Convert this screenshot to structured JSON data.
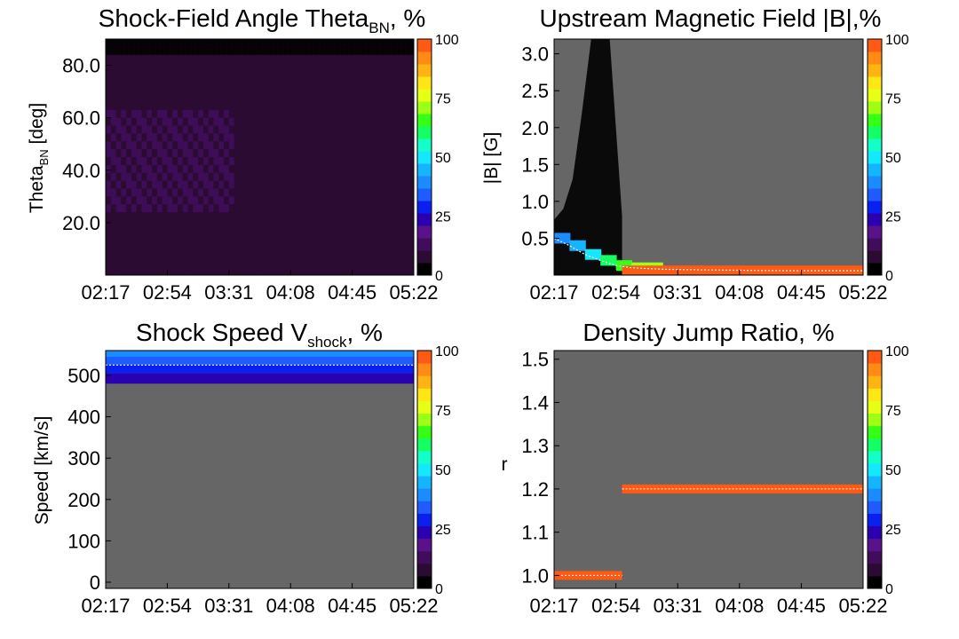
{
  "colorbar": {
    "ticks": [
      "0",
      "25",
      "50",
      "75",
      "100"
    ],
    "colors": [
      "#000000",
      "#2b0a33",
      "#3f0d5c",
      "#5a128a",
      "#2a00b0",
      "#0a20f0",
      "#1e5cff",
      "#1a8cff",
      "#14b4ff",
      "#14e8ff",
      "#14ffc8",
      "#14ff64",
      "#34ff14",
      "#9cff14",
      "#e6ff14",
      "#ffe614",
      "#ffb414",
      "#ff8a14",
      "#ff5a14"
    ]
  },
  "chart_data": [
    {
      "type": "heatmap",
      "title_main": "Shock-Field Angle Theta",
      "title_sub": "BN",
      "title_tail": ", %",
      "ylabel_main": "Theta",
      "ylabel_sub": "BN",
      "ylabel_tail": " [deg]",
      "x_ticks": [
        "02:17",
        "02:54",
        "03:31",
        "04:08",
        "04:45",
        "05:22"
      ],
      "y_ticks": [
        {
          "v": 20,
          "label": "20.0"
        },
        {
          "v": 40,
          "label": "40.0"
        },
        {
          "v": 60,
          "label": "60.0"
        },
        {
          "v": 80,
          "label": "80.0"
        }
      ],
      "ylim": [
        0,
        90
      ],
      "colorbar_range": [
        0,
        100
      ],
      "background": "#2e0f3a",
      "description_series": "diffuse low-percentage distribution across all angles and times",
      "grid": false
    },
    {
      "type": "heatmap",
      "title_main": "Upstream Magnetic Field |B|,%",
      "ylabel_main": "|B| [G]",
      "x_ticks": [
        "02:17",
        "02:54",
        "03:31",
        "04:08",
        "04:45",
        "05:22"
      ],
      "y_ticks": [
        {
          "v": 0.5,
          "label": "0.5"
        },
        {
          "v": 1.0,
          "label": "1.0"
        },
        {
          "v": 1.5,
          "label": "1.5"
        },
        {
          "v": 2.0,
          "label": "2.0"
        },
        {
          "v": 2.5,
          "label": "2.5"
        },
        {
          "v": 3.0,
          "label": "3.0"
        }
      ],
      "ylim": [
        0,
        3.2
      ],
      "colorbar_range": [
        0,
        100
      ],
      "background": "#666666",
      "high_band": {
        "x_start_frac": 0.22,
        "x_end_frac": 1.0,
        "y": 0.07,
        "pct": 95
      },
      "decay_curve": [
        [
          0.0,
          0.5
        ],
        [
          0.05,
          0.4
        ],
        [
          0.1,
          0.28
        ],
        [
          0.15,
          0.2
        ],
        [
          0.2,
          0.13
        ],
        [
          0.25,
          0.1
        ],
        [
          0.35,
          0.08
        ],
        [
          0.5,
          0.07
        ],
        [
          0.75,
          0.06
        ],
        [
          1.0,
          0.06
        ]
      ],
      "grid": false
    },
    {
      "type": "heatmap",
      "title_main": "Shock Speed V",
      "title_sub": "shock",
      "title_tail": ", %",
      "ylabel_main": "Speed [km/s]",
      "x_ticks": [
        "02:17",
        "02:54",
        "03:31",
        "04:08",
        "04:45",
        "05:22"
      ],
      "y_ticks": [
        {
          "v": 0,
          "label": "0"
        },
        {
          "v": 100,
          "label": "100"
        },
        {
          "v": 200,
          "label": "200"
        },
        {
          "v": 300,
          "label": "300"
        },
        {
          "v": 400,
          "label": "400"
        },
        {
          "v": 500,
          "label": "500"
        }
      ],
      "ylim": [
        -15,
        560
      ],
      "colorbar_range": [
        0,
        100
      ],
      "background": "#666666",
      "bands": [
        {
          "y0": 480,
          "y1": 505,
          "pct": 22
        },
        {
          "y0": 505,
          "y1": 525,
          "pct": 28
        },
        {
          "y0": 525,
          "y1": 545,
          "pct": 34
        },
        {
          "y0": 545,
          "y1": 560,
          "pct": 40
        }
      ],
      "center_line": 525,
      "grid": false
    },
    {
      "type": "heatmap",
      "title_main": "Density Jump Ratio, %",
      "ylabel_main": "r",
      "x_ticks": [
        "02:17",
        "02:54",
        "03:31",
        "04:08",
        "04:45",
        "05:22"
      ],
      "y_ticks": [
        {
          "v": 1.0,
          "label": "1.0"
        },
        {
          "v": 1.1,
          "label": "1.1"
        },
        {
          "v": 1.2,
          "label": "1.2"
        },
        {
          "v": 1.3,
          "label": "1.3"
        },
        {
          "v": 1.4,
          "label": "1.4"
        },
        {
          "v": 1.5,
          "label": "1.5"
        }
      ],
      "ylim": [
        0.97,
        1.52
      ],
      "colorbar_range": [
        0,
        100
      ],
      "background": "#666666",
      "bands": [
        {
          "x_start_frac": 0.0,
          "x_end_frac": 0.22,
          "y": 1.0,
          "pct": 95
        },
        {
          "x_start_frac": 0.22,
          "x_end_frac": 1.0,
          "y": 1.2,
          "pct": 95
        }
      ],
      "grid": false
    }
  ]
}
